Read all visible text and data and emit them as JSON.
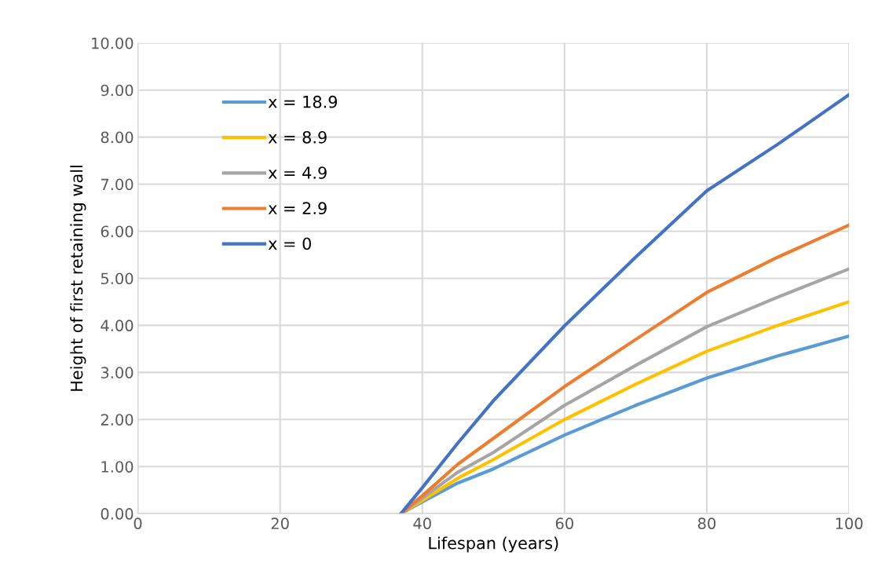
{
  "chart_data": {
    "type": "line",
    "xlabel": "Lifespan (years)",
    "ylabel": "Height of first retaining wall",
    "xlim": [
      0,
      100
    ],
    "xticks": [
      0,
      20,
      40,
      60,
      80,
      100
    ],
    "ylim": [
      0,
      10
    ],
    "yticks": [
      {
        "value": 0,
        "label": "0.00"
      },
      {
        "value": 1,
        "label": "1.00"
      },
      {
        "value": 2,
        "label": "2.00"
      },
      {
        "value": 3,
        "label": "3.00"
      },
      {
        "value": 4,
        "label": "4.00"
      },
      {
        "value": 5,
        "label": "5.00"
      },
      {
        "value": 6,
        "label": "6.00"
      },
      {
        "value": 7,
        "label": "7.00"
      },
      {
        "value": 8,
        "label": "8.00"
      },
      {
        "value": 9,
        "label": "9.00"
      },
      {
        "value": 10,
        "label": "10.00"
      }
    ],
    "x": [
      37,
      40,
      45,
      50,
      60,
      70,
      80,
      90,
      100
    ],
    "grid": true,
    "legend": "top left",
    "marker": "none",
    "line_style": "solid",
    "series": [
      {
        "name": "x = 18.9",
        "color": "#5b9bd5",
        "values": [
          0,
          0.25,
          0.65,
          0.95,
          1.67,
          2.3,
          2.88,
          3.35,
          3.77
        ]
      },
      {
        "name": "x = 8.9",
        "color": "#ffc000",
        "values": [
          0,
          0.28,
          0.75,
          1.15,
          2.0,
          2.75,
          3.45,
          4.0,
          4.5
        ]
      },
      {
        "name": "x = 4.9",
        "color": "#a5a5a5",
        "values": [
          0,
          0.33,
          0.88,
          1.3,
          2.3,
          3.15,
          3.97,
          4.6,
          5.2
        ]
      },
      {
        "name": "x = 2.9",
        "color": "#ed7d31",
        "values": [
          0,
          0.38,
          1.05,
          1.6,
          2.7,
          3.7,
          4.7,
          5.45,
          6.13
        ]
      },
      {
        "name": "x = 0",
        "color": "#4472c4",
        "values": [
          0,
          0.55,
          1.5,
          2.4,
          3.99,
          5.45,
          6.86,
          7.85,
          8.9
        ]
      }
    ]
  }
}
